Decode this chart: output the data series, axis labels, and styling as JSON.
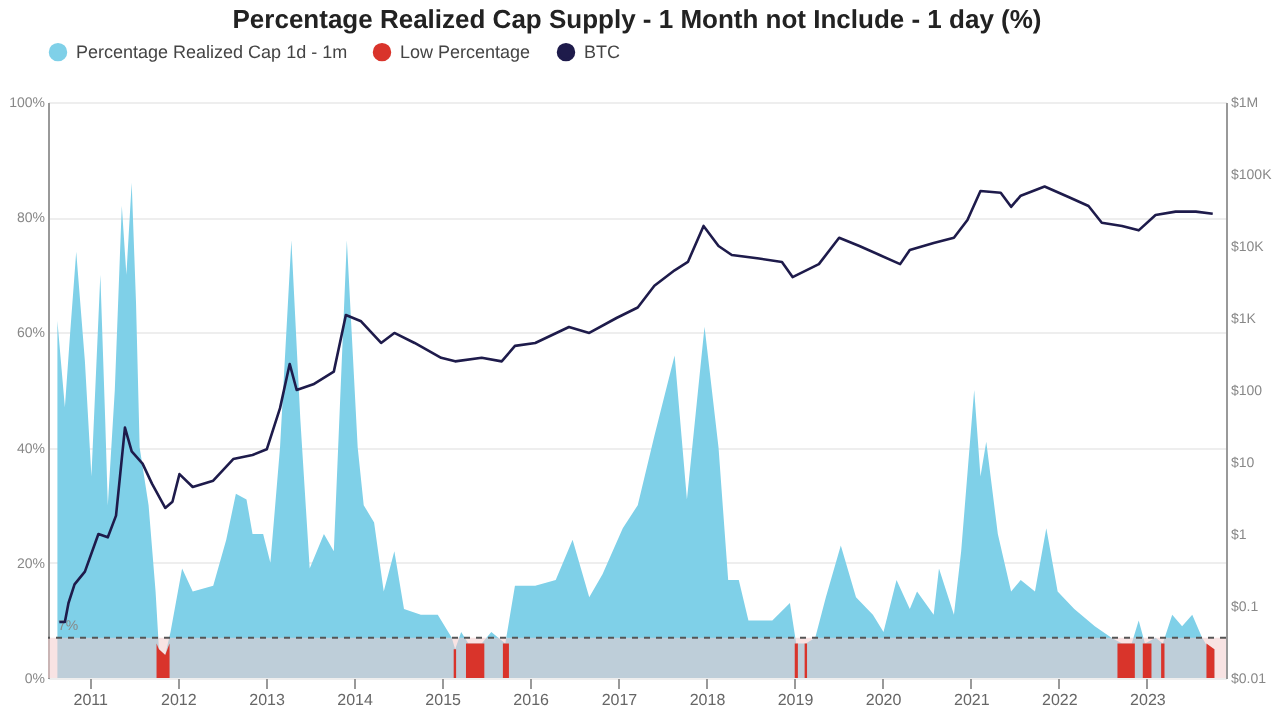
{
  "chart_data": {
    "type": "area",
    "title": "Percentage Realized Cap Supply - 1 Month not Include - 1 day (%)",
    "xlim": [
      "2010-07-12",
      "2023-11-25"
    ],
    "xticks": [
      "2011",
      "2012",
      "2013",
      "2014",
      "2015",
      "2016",
      "2017",
      "2018",
      "2019",
      "2020",
      "2021",
      "2022",
      "2023"
    ],
    "ylim": [
      0,
      100
    ],
    "yticks": [
      {
        "value": 0,
        "label": "0%"
      },
      {
        "value": 20,
        "label": "20%"
      },
      {
        "value": 40,
        "label": "40%"
      },
      {
        "value": 60,
        "label": "60%"
      },
      {
        "value": 80,
        "label": "80%"
      },
      {
        "value": 100,
        "label": "100%"
      }
    ],
    "y2lim": [
      0.01,
      1000000
    ],
    "y2ticks": [
      {
        "value": 0.01,
        "label": "$0.01"
      },
      {
        "value": 0.1,
        "label": "$0.1"
      },
      {
        "value": 1,
        "label": "$1"
      },
      {
        "value": 10,
        "label": "$10"
      },
      {
        "value": 100,
        "label": "$100"
      },
      {
        "value": 1000,
        "label": "$1K"
      },
      {
        "value": 10000,
        "label": "$10K"
      },
      {
        "value": 100000,
        "label": "$100K"
      },
      {
        "value": 1000000,
        "label": "$1M"
      }
    ],
    "log": "y2",
    "grid": "y",
    "legend": "top",
    "ref_lines": [
      {
        "axis": "y",
        "value": 7,
        "label": "7%",
        "color": "#555555",
        "line_style": "dashed"
      }
    ],
    "bands": [
      {
        "axis": "y",
        "from": 0,
        "to": 7,
        "color": "#f2cccc"
      }
    ],
    "series": [
      {
        "name": "Percentage Realized Cap 1d - 1m",
        "color": "#7fd0e8",
        "x": [
          "2010-08-20",
          "2010-09-20",
          "2010-10-12",
          "2010-11-06",
          "2010-12-12",
          "2011-01-08",
          "2011-02-14",
          "2011-03-06",
          "2011-03-17",
          "2011-04-15",
          "2011-05-14",
          "2011-06-02",
          "2011-06-24",
          "2011-07-12",
          "2011-07-27",
          "2011-09-02",
          "2011-10-01",
          "2011-10-15",
          "2011-11-10",
          "2011-12-02",
          "2012-01-19",
          "2012-03-03",
          "2012-05-27",
          "2012-07-20",
          "2012-08-29",
          "2012-10-12",
          "2012-11-06",
          "2012-12-20",
          "2013-01-19",
          "2013-02-28",
          "2013-04-16",
          "2013-05-23",
          "2013-07-01",
          "2013-08-29",
          "2013-10-09",
          "2013-12-02",
          "2014-01-16",
          "2014-02-10",
          "2014-03-25",
          "2014-05-04",
          "2014-06-17",
          "2014-07-27",
          "2014-10-05",
          "2014-12-14",
          "2015-02-10",
          "2015-02-24",
          "2015-03-21",
          "2015-04-20",
          "2015-06-14",
          "2015-07-24",
          "2015-09-20",
          "2015-10-30",
          "2016-01-22",
          "2016-04-16",
          "2016-06-25",
          "2016-09-02",
          "2016-10-27",
          "2017-01-19",
          "2017-03-22",
          "2017-05-30",
          "2017-08-22",
          "2017-10-12",
          "2017-12-24",
          "2018-02-20",
          "2018-04-01",
          "2018-05-15",
          "2018-06-24",
          "2018-10-01",
          "2018-12-13",
          "2019-01-08",
          "2019-02-17",
          "2019-03-28",
          "2019-05-11",
          "2019-07-12",
          "2019-09-13",
          "2019-11-22",
          "2020-01-05",
          "2020-02-28",
          "2020-04-23",
          "2020-05-23",
          "2020-07-31",
          "2020-08-22",
          "2020-10-23",
          "2020-11-22",
          "2021-01-15",
          "2021-02-10",
          "2021-03-06",
          "2021-04-23",
          "2021-06-17",
          "2021-07-27",
          "2021-09-24",
          "2021-11-10",
          "2021-12-27",
          "2022-03-06",
          "2022-05-30",
          "2022-08-07",
          "2022-09-20",
          "2022-10-30",
          "2022-11-28",
          "2022-12-24",
          "2023-02-06",
          "2023-03-08",
          "2023-04-16",
          "2023-05-27",
          "2023-07-08",
          "2023-08-18",
          "2023-09-16",
          "2023-10-08"
        ],
        "values": [
          62,
          47,
          60,
          74,
          55,
          35,
          70,
          45,
          30,
          50,
          82,
          70,
          86,
          65,
          40,
          30,
          15,
          5,
          4,
          8,
          19,
          15,
          16,
          24,
          32,
          31,
          25,
          25,
          20,
          40,
          76,
          45,
          19,
          25,
          22,
          76,
          40,
          30,
          27,
          15,
          22,
          12,
          11,
          11,
          7,
          5,
          8,
          6,
          6,
          8,
          6,
          16,
          16,
          17,
          24,
          14,
          18,
          26,
          30,
          42,
          56,
          31,
          61,
          40,
          17,
          17,
          10,
          10,
          13,
          6,
          6,
          7,
          14,
          23,
          14,
          11,
          8,
          17,
          12,
          15,
          11,
          19,
          11,
          22,
          50,
          35,
          41,
          25,
          15,
          17,
          15,
          26,
          15,
          12,
          9,
          7,
          6,
          6,
          10,
          6,
          7,
          6,
          11,
          9,
          11,
          7,
          5,
          5
        ]
      },
      {
        "name": "Low Percentage",
        "color": "#d9342b",
        "x": [
          "2011-10-05",
          "2011-10-15",
          "2011-11-10",
          "2011-11-28",
          "2012-01-01",
          "2015-02-18",
          "2015-02-28",
          "2015-03-10",
          "2015-04-10",
          "2015-06-14",
          "2015-06-25",
          "2015-07-24",
          "2015-09-10",
          "2015-10-05",
          "2015-10-30",
          "2019-01-02",
          "2019-01-15",
          "2019-02-01",
          "2019-02-12",
          "2019-02-22",
          "2019-03-28",
          "2022-09-01",
          "2022-10-30",
          "2022-11-12",
          "2022-11-28",
          "2022-12-15",
          "2023-01-20",
          "2023-02-06",
          "2023-03-01",
          "2023-03-15",
          "2023-04-16",
          "2023-09-05",
          "2023-10-08"
        ],
        "values": [
          6,
          5,
          4,
          6,
          null,
          5,
          5,
          null,
          6,
          6,
          6,
          null,
          6,
          6,
          null,
          6,
          6,
          null,
          6,
          6,
          null,
          6,
          6,
          6,
          null,
          6,
          6,
          null,
          6,
          6,
          null,
          6,
          5
        ]
      },
      {
        "name": "BTC",
        "type": "line",
        "axis": "y2",
        "color": "#1e1b4b",
        "x": [
          "2010-08-28",
          "2010-09-20",
          "2010-10-05",
          "2010-10-30",
          "2010-12-12",
          "2011-02-06",
          "2011-03-17",
          "2011-04-20",
          "2011-05-27",
          "2011-06-24",
          "2011-08-08",
          "2011-09-16",
          "2011-11-10",
          "2011-12-10",
          "2012-01-08",
          "2012-03-03",
          "2012-05-27",
          "2012-08-18",
          "2012-11-06",
          "2013-01-04",
          "2013-02-28",
          "2013-04-09",
          "2013-05-08",
          "2013-07-16",
          "2013-10-09",
          "2013-11-28",
          "2014-01-30",
          "2014-04-23",
          "2014-06-17",
          "2014-09-09",
          "2014-12-28",
          "2015-02-24",
          "2015-06-14",
          "2015-09-05",
          "2015-10-30",
          "2016-01-22",
          "2016-06-10",
          "2016-09-02",
          "2016-12-24",
          "2017-03-22",
          "2017-05-30",
          "2017-08-22",
          "2017-10-16",
          "2017-12-20",
          "2018-02-20",
          "2018-04-16",
          "2018-08-07",
          "2018-11-10",
          "2018-12-24",
          "2019-04-12",
          "2019-07-05",
          "2019-09-27",
          "2019-12-20",
          "2020-03-14",
          "2020-04-23",
          "2020-07-31",
          "2020-10-23",
          "2020-12-18",
          "2021-02-10",
          "2021-05-05",
          "2021-06-17",
          "2021-07-27",
          "2021-11-03",
          "2022-02-10",
          "2022-05-04",
          "2022-06-28",
          "2022-09-20",
          "2022-11-28",
          "2023-02-06",
          "2023-04-30",
          "2023-07-23",
          "2023-10-01"
        ],
        "values": [
          0.06,
          0.06,
          0.11,
          0.2,
          0.3,
          1,
          0.9,
          1.8,
          30,
          14,
          9.5,
          5,
          2.3,
          2.8,
          6.8,
          4.5,
          5.5,
          11,
          12.5,
          15,
          56,
          230,
          100,
          120,
          180,
          1100,
          900,
          450,
          620,
          450,
          280,
          250,
          280,
          250,
          410,
          450,
          750,
          620,
          1000,
          1400,
          2800,
          4600,
          6000,
          19000,
          10000,
          7500,
          6700,
          6000,
          3700,
          5600,
          13000,
          10000,
          7500,
          5600,
          8800,
          11000,
          13000,
          23000,
          58000,
          55000,
          35000,
          50000,
          67000,
          48000,
          36000,
          21000,
          19000,
          16500,
          27000,
          30000,
          30000,
          28000
        ]
      }
    ]
  }
}
